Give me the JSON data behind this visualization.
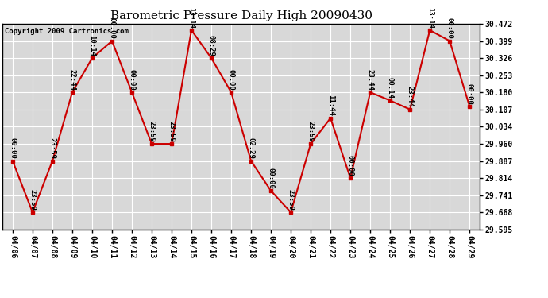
{
  "title": "Barometric Pressure Daily High 20090430",
  "copyright": "Copyright 2009 Cartronics.com",
  "ylim": [
    29.595,
    30.472
  ],
  "yticks": [
    29.595,
    29.668,
    29.741,
    29.814,
    29.887,
    29.96,
    30.034,
    30.107,
    30.18,
    30.253,
    30.326,
    30.399,
    30.472
  ],
  "dates": [
    "04/06",
    "04/07",
    "04/08",
    "04/09",
    "04/10",
    "04/11",
    "04/12",
    "04/13",
    "04/14",
    "04/15",
    "04/16",
    "04/17",
    "04/18",
    "04/19",
    "04/20",
    "04/21",
    "04/22",
    "04/23",
    "04/24",
    "04/25",
    "04/26",
    "04/27",
    "04/28",
    "04/29"
  ],
  "values": [
    29.887,
    29.668,
    29.887,
    30.18,
    30.326,
    30.399,
    30.18,
    29.96,
    29.96,
    30.445,
    30.326,
    30.18,
    29.887,
    29.76,
    29.668,
    29.96,
    30.07,
    29.814,
    30.18,
    30.145,
    30.107,
    30.445,
    30.399,
    30.12
  ],
  "time_labels": [
    "00:00",
    "23:59",
    "23:59",
    "22:44",
    "10:14",
    "00:00",
    "00:00",
    "23:59",
    "23:59",
    "13:14",
    "08:29",
    "00:00",
    "02:29",
    "00:00",
    "23:59",
    "23:59",
    "11:44",
    "00:00",
    "23:44",
    "00:14",
    "23:44",
    "13:14",
    "00:00",
    "00:00"
  ],
  "line_color": "#cc0000",
  "marker_color": "#cc0000",
  "bg_color": "#d8d8d8",
  "grid_color": "#ffffff",
  "text_color": "#000000",
  "title_fontsize": 11,
  "label_fontsize": 6.5,
  "tick_fontsize": 7.0
}
